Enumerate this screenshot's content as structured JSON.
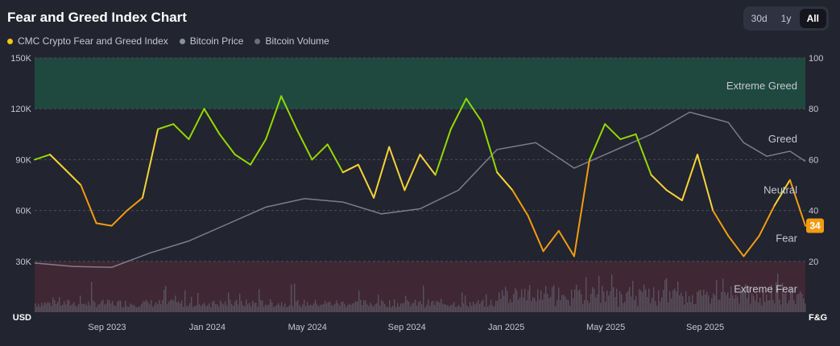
{
  "header": {
    "title": "Fear and Greed Index Chart",
    "range_tabs": [
      {
        "label": "30d",
        "active": false
      },
      {
        "label": "1y",
        "active": false
      },
      {
        "label": "All",
        "active": true
      }
    ]
  },
  "legend": [
    {
      "label": "CMC Crypto Fear and Greed Index",
      "color": "#f5c518"
    },
    {
      "label": "Bitcoin Price",
      "color": "#8b8e9b"
    },
    {
      "label": "Bitcoin Volume",
      "color": "#6b6e7a"
    }
  ],
  "chart_data": {
    "type": "line",
    "left_axis": {
      "label": "USD",
      "ticks": [
        "150K",
        "120K",
        "90K",
        "60K",
        "30K"
      ],
      "values": [
        150000,
        120000,
        90000,
        60000,
        30000
      ],
      "range": [
        0,
        150000
      ]
    },
    "right_axis": {
      "label": "F&G",
      "ticks": [
        "100",
        "80",
        "60",
        "40",
        "20"
      ],
      "values": [
        100,
        80,
        60,
        40,
        20
      ],
      "range": [
        0,
        100
      ]
    },
    "x_ticks": [
      "Sep 2023",
      "Jan 2024",
      "May 2024",
      "Sep 2024",
      "Jan 2025",
      "May 2025",
      "Sep 2025"
    ],
    "x_range": [
      "2023-06",
      "2025-12"
    ],
    "zones": [
      {
        "name": "Extreme Greed",
        "from": 80,
        "to": 100,
        "color": "#1f5546"
      },
      {
        "name": "Greed",
        "from": 60,
        "to": 80
      },
      {
        "name": "Neutral",
        "from": 40,
        "to": 60
      },
      {
        "name": "Fear",
        "from": 20,
        "to": 40
      },
      {
        "name": "Extreme Fear",
        "from": 0,
        "to": 20,
        "color": "#4a2a35"
      }
    ],
    "current_value": "34",
    "series": [
      {
        "name": "CMC Crypto Fear and Greed Index",
        "x": [
          0,
          0.02,
          0.04,
          0.06,
          0.08,
          0.1,
          0.12,
          0.14,
          0.16,
          0.18,
          0.2,
          0.22,
          0.24,
          0.26,
          0.28,
          0.3,
          0.32,
          0.34,
          0.36,
          0.38,
          0.4,
          0.42,
          0.44,
          0.46,
          0.48,
          0.5,
          0.52,
          0.54,
          0.56,
          0.58,
          0.6,
          0.62,
          0.64,
          0.66,
          0.68,
          0.7,
          0.72,
          0.74,
          0.76,
          0.78,
          0.8,
          0.82,
          0.84,
          0.86,
          0.88,
          0.9,
          0.92,
          0.94,
          0.96,
          0.98,
          1.0
        ],
        "values": [
          60,
          62,
          56,
          50,
          35,
          34,
          40,
          45,
          72,
          74,
          68,
          80,
          70,
          62,
          58,
          68,
          85,
          72,
          60,
          66,
          55,
          58,
          45,
          65,
          48,
          62,
          54,
          72,
          84,
          75,
          55,
          48,
          38,
          24,
          32,
          22,
          60,
          74,
          68,
          70,
          54,
          48,
          44,
          62,
          40,
          30,
          22,
          30,
          42,
          52,
          34
        ]
      },
      {
        "name": "Bitcoin Price",
        "x": [
          0,
          0.05,
          0.1,
          0.15,
          0.2,
          0.25,
          0.3,
          0.35,
          0.4,
          0.45,
          0.5,
          0.55,
          0.6,
          0.65,
          0.7,
          0.75,
          0.8,
          0.85,
          0.9,
          0.92,
          0.95,
          0.98,
          1.0
        ],
        "values": [
          29000,
          27000,
          26500,
          35000,
          42000,
          52000,
          62000,
          67000,
          65000,
          58000,
          61000,
          72000,
          96000,
          100000,
          85000,
          95000,
          105000,
          118000,
          112000,
          100000,
          92000,
          95000,
          89000
        ]
      }
    ]
  }
}
